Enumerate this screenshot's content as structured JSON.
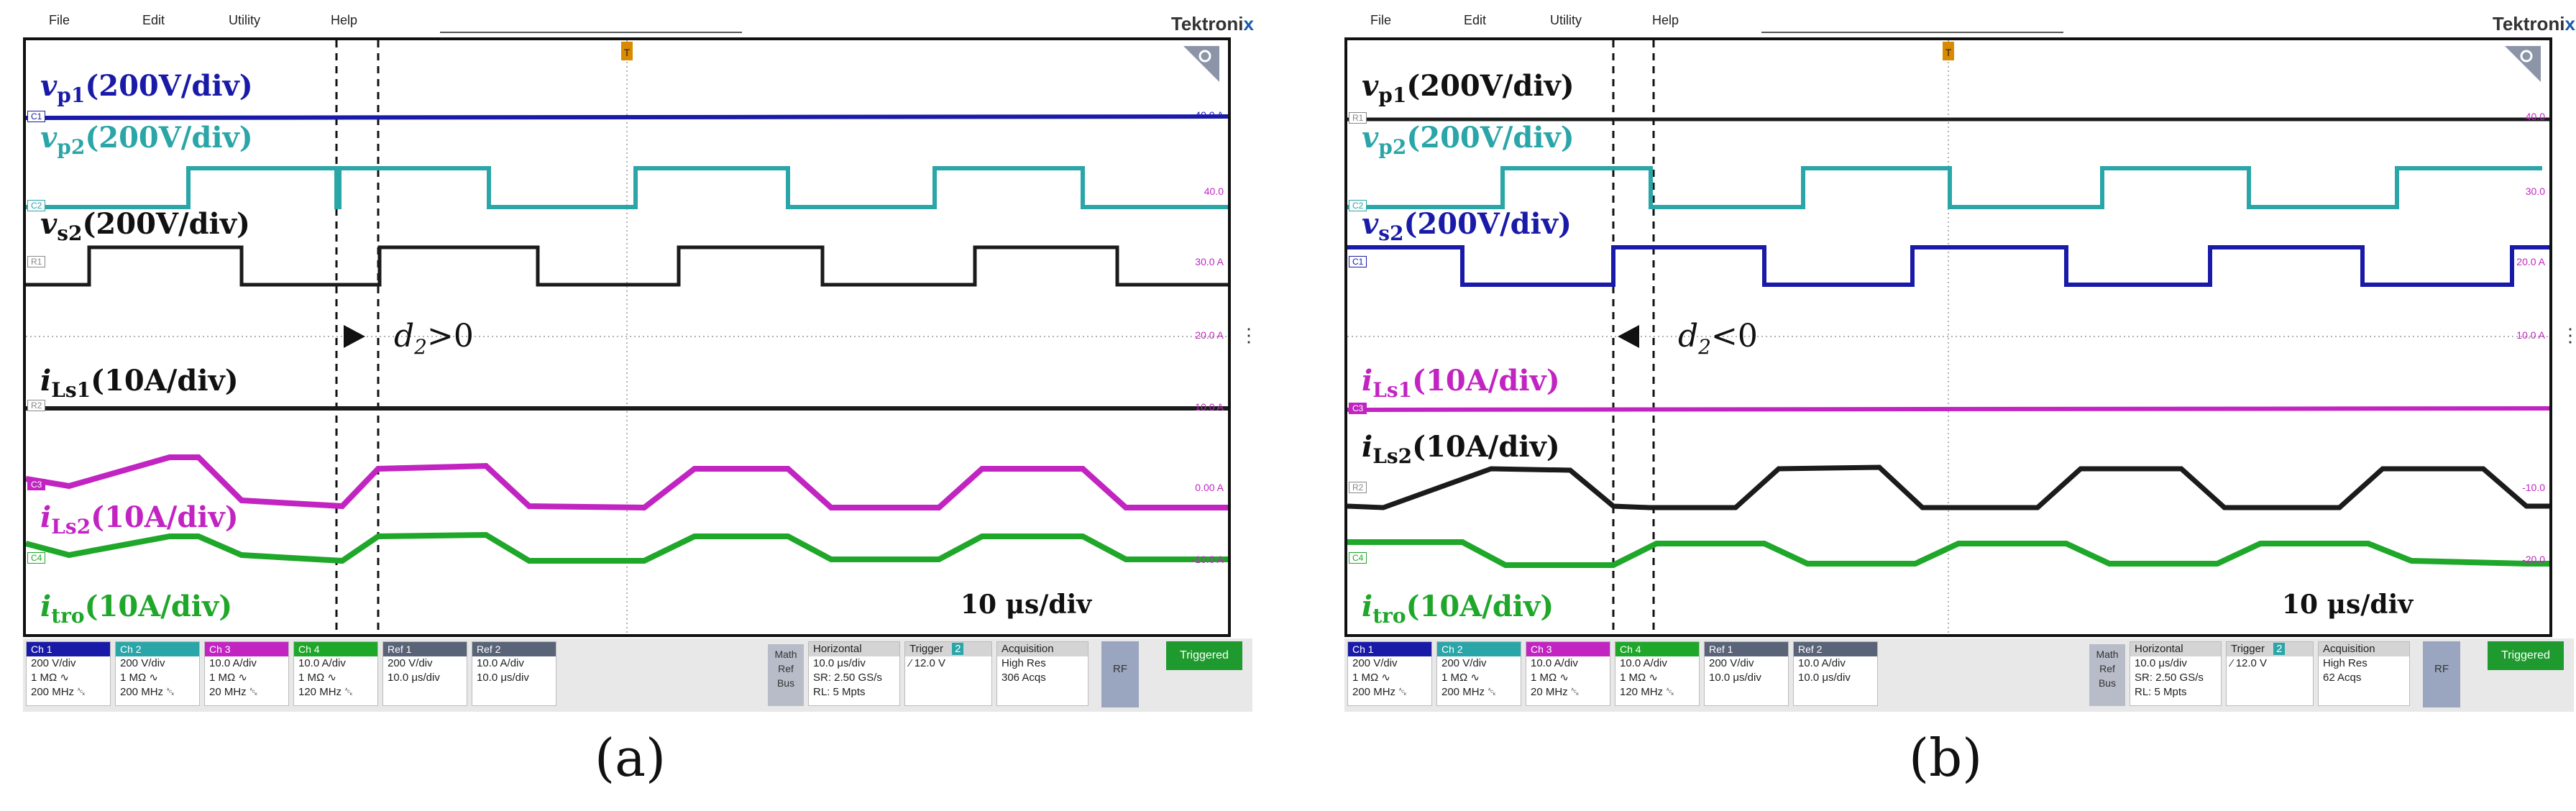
{
  "colors": {
    "ch1": "#1a1aa8",
    "ch2": "#2aa5a8",
    "ref": "#1b1b1b",
    "ch3": "#c224c2",
    "ch4": "#1fa72a",
    "grid": "#9a9a9a",
    "label_a_vp1": "#1a1aa8"
  },
  "menu": {
    "file": "File",
    "edit": "Edit",
    "utility": "Utility",
    "help": "Help"
  },
  "brand": {
    "prefix": "Tektroni",
    "suffix": "x"
  },
  "panel_a": {
    "caption": "(a)",
    "labels": {
      "vp1": {
        "main": "v",
        "sub": "p1",
        "unit": "(200V/div)"
      },
      "vp2": {
        "main": "v",
        "sub": "p2",
        "unit": "(200V/div)"
      },
      "vs2": {
        "main": "v",
        "sub": "s2",
        "unit": "(200V/div)"
      },
      "ils1": {
        "main": "i",
        "sub": "Ls1",
        "unit": "(10A/div)"
      },
      "ils2": {
        "main": "i",
        "sub": "Ls2",
        "unit": "(10A/div)"
      },
      "itro": {
        "main": "i",
        "sub": "tro",
        "unit": "(10A/div)"
      }
    },
    "phase_label": {
      "d": "d",
      "sub": "2",
      "rel": ">0"
    },
    "timebase": "10 μs/div",
    "markers": [
      "C1",
      "C2",
      "R1",
      "R2",
      "C3",
      "C4"
    ],
    "right_scale": [
      "40.0 A",
      "40.0",
      "30.0 A",
      "20.0 A",
      "10.0 A",
      "0.00 A",
      "-10.0 A"
    ],
    "status": {
      "ch1": {
        "head": "Ch 1",
        "l1": "200 V/div",
        "l2": "1 MΩ ∿",
        "l3": "200 MHz ␆"
      },
      "ch2": {
        "head": "Ch 2",
        "l1": "200 V/div",
        "l2": "1 MΩ ∿",
        "l3": "200 MHz ␆"
      },
      "ch3": {
        "head": "Ch 3",
        "l1": "10.0 A/div",
        "l2": "1 MΩ ∿",
        "l3": "20 MHz ␆"
      },
      "ch4": {
        "head": "Ch 4",
        "l1": "10.0 A/div",
        "l2": "1 MΩ ∿",
        "l3": "120 MHz ␆"
      },
      "ref1": {
        "head": "Ref 1",
        "l1": "200 V/div",
        "l2": "10.0 μs/div"
      },
      "ref2": {
        "head": "Ref 2",
        "l1": "10.0 A/div",
        "l2": "10.0 μs/div"
      },
      "math": [
        "Math",
        "Ref",
        "Bus"
      ],
      "horizontal": {
        "head": "Horizontal",
        "l1": "10.0 μs/div",
        "l2": "SR: 2.50 GS/s",
        "l3": "RL: 5 Mpts"
      },
      "trigger": {
        "head": "Trigger",
        "src": "2",
        "l1": "12.0 V"
      },
      "acquisition": {
        "head": "Acquisition",
        "l1": "High Res",
        "l2": "306 Acqs"
      },
      "rf": "RF",
      "triggered": "Triggered"
    }
  },
  "panel_b": {
    "caption": "(b)",
    "labels": {
      "vp1": {
        "main": "v",
        "sub": "p1",
        "unit": "(200V/div)"
      },
      "vp2": {
        "main": "v",
        "sub": "p2",
        "unit": "(200V/div)"
      },
      "vs2": {
        "main": "v",
        "sub": "s2",
        "unit": "(200V/div)"
      },
      "ils1": {
        "main": "i",
        "sub": "Ls1",
        "unit": "(10A/div)"
      },
      "ils2": {
        "main": "i",
        "sub": "Ls2",
        "unit": "(10A/div)"
      },
      "itro": {
        "main": "i",
        "sub": "tro",
        "unit": "(10A/div)"
      }
    },
    "phase_label": {
      "d": "d",
      "sub": "2",
      "rel": "<0"
    },
    "timebase": "10 μs/div",
    "markers": [
      "R1",
      "C2",
      "C1",
      "C3",
      "R2",
      "C4"
    ],
    "right_scale": [
      "40.0",
      "30.0",
      "20.0 A",
      "10.0 A",
      "-10.0",
      "-20.0"
    ],
    "status": {
      "ch1": {
        "head": "Ch 1",
        "l1": "200 V/div",
        "l2": "1 MΩ ∿",
        "l3": "200 MHz ␆"
      },
      "ch2": {
        "head": "Ch 2",
        "l1": "200 V/div",
        "l2": "1 MΩ ∿",
        "l3": "200 MHz ␆"
      },
      "ch3": {
        "head": "Ch 3",
        "l1": "10.0 A/div",
        "l2": "1 MΩ ∿",
        "l3": "20 MHz ␆"
      },
      "ch4": {
        "head": "Ch 4",
        "l1": "10.0 A/div",
        "l2": "1 MΩ ∿",
        "l3": "120 MHz ␆"
      },
      "ref1": {
        "head": "Ref 1",
        "l1": "200 V/div",
        "l2": "10.0 μs/div"
      },
      "ref2": {
        "head": "Ref 2",
        "l1": "10.0 A/div",
        "l2": "10.0 μs/div"
      },
      "math": [
        "Math",
        "Ref",
        "Bus"
      ],
      "horizontal": {
        "head": "Horizontal",
        "l1": "10.0 μs/div",
        "l2": "SR: 2.50 GS/s",
        "l3": "RL: 5 Mpts"
      },
      "trigger": {
        "head": "Trigger",
        "src": "2",
        "l1": "12.0 V"
      },
      "acquisition": {
        "head": "Acquisition",
        "l1": "High Res",
        "l2": "62 Acqs"
      },
      "rf": "RF",
      "triggered": "Triggered"
    }
  }
}
